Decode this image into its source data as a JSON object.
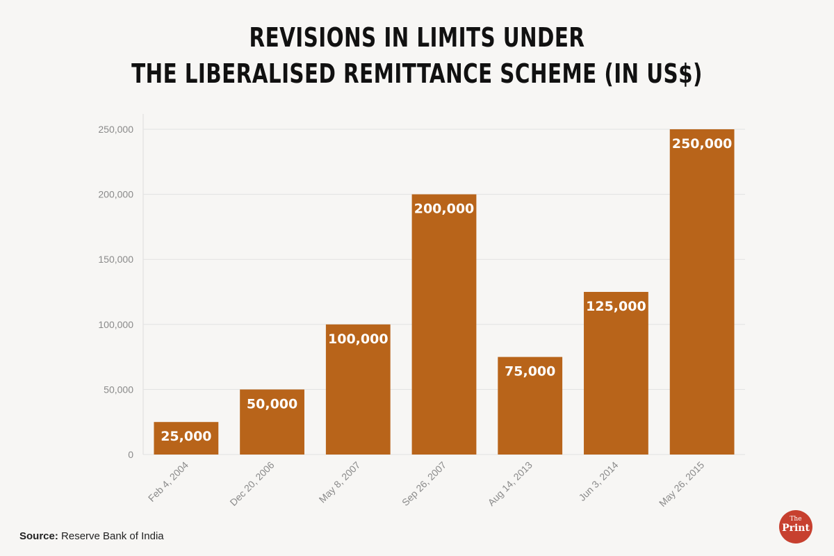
{
  "title": {
    "line1": "REVISIONS IN LIMITS UNDER",
    "line2": "THE LIBERALISED REMITTANCE SCHEME (IN US$)"
  },
  "chart_data": {
    "type": "bar",
    "categories": [
      "Feb 4, 2004",
      "Dec 20, 2006",
      "May 8, 2007",
      "Sep 26, 2007",
      "Aug 14, 2013",
      "Jun 3, 2014",
      "May 26, 2015"
    ],
    "values": [
      25000,
      50000,
      100000,
      200000,
      75000,
      125000,
      250000
    ],
    "value_labels": [
      "25,000",
      "50,000",
      "100,000",
      "200,000",
      "75,000",
      "125,000",
      "250,000"
    ],
    "yticks": [
      0,
      50000,
      100000,
      150000,
      200000,
      250000
    ],
    "ytick_labels": [
      "0",
      "50,000",
      "100,000",
      "150,000",
      "200,000",
      "250,000"
    ],
    "ylim": [
      0,
      250000
    ],
    "grid": true,
    "bar_color": "#b8641a",
    "xlabel": "",
    "ylabel": ""
  },
  "source": {
    "label": "Source:",
    "text": "Reserve Bank of India"
  },
  "logo": {
    "small": "The",
    "big": "Print"
  }
}
